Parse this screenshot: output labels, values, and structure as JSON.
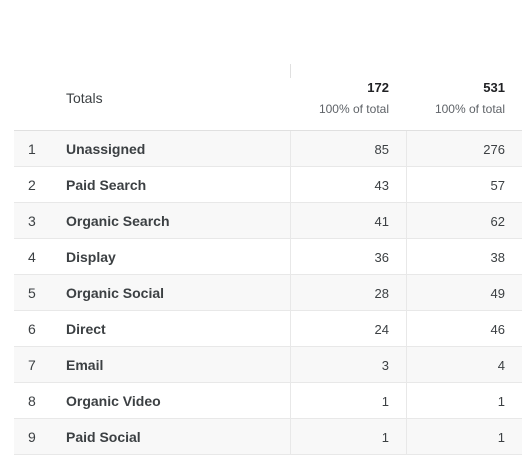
{
  "header": {
    "totals_label": "Totals",
    "metrics": [
      {
        "value": "172",
        "sub": "100% of total"
      },
      {
        "value": "531",
        "sub": "100% of total"
      }
    ]
  },
  "rows": [
    {
      "index": "1",
      "name": "Unassigned",
      "v1": "85",
      "v2": "276"
    },
    {
      "index": "2",
      "name": "Paid Search",
      "v1": "43",
      "v2": "57"
    },
    {
      "index": "3",
      "name": "Organic Search",
      "v1": "41",
      "v2": "62"
    },
    {
      "index": "4",
      "name": "Display",
      "v1": "36",
      "v2": "38"
    },
    {
      "index": "5",
      "name": "Organic Social",
      "v1": "28",
      "v2": "49"
    },
    {
      "index": "6",
      "name": "Direct",
      "v1": "24",
      "v2": "46"
    },
    {
      "index": "7",
      "name": "Email",
      "v1": "3",
      "v2": "4"
    },
    {
      "index": "8",
      "name": "Organic Video",
      "v1": "1",
      "v2": "1"
    },
    {
      "index": "9",
      "name": "Paid Social",
      "v1": "1",
      "v2": "1"
    }
  ]
}
